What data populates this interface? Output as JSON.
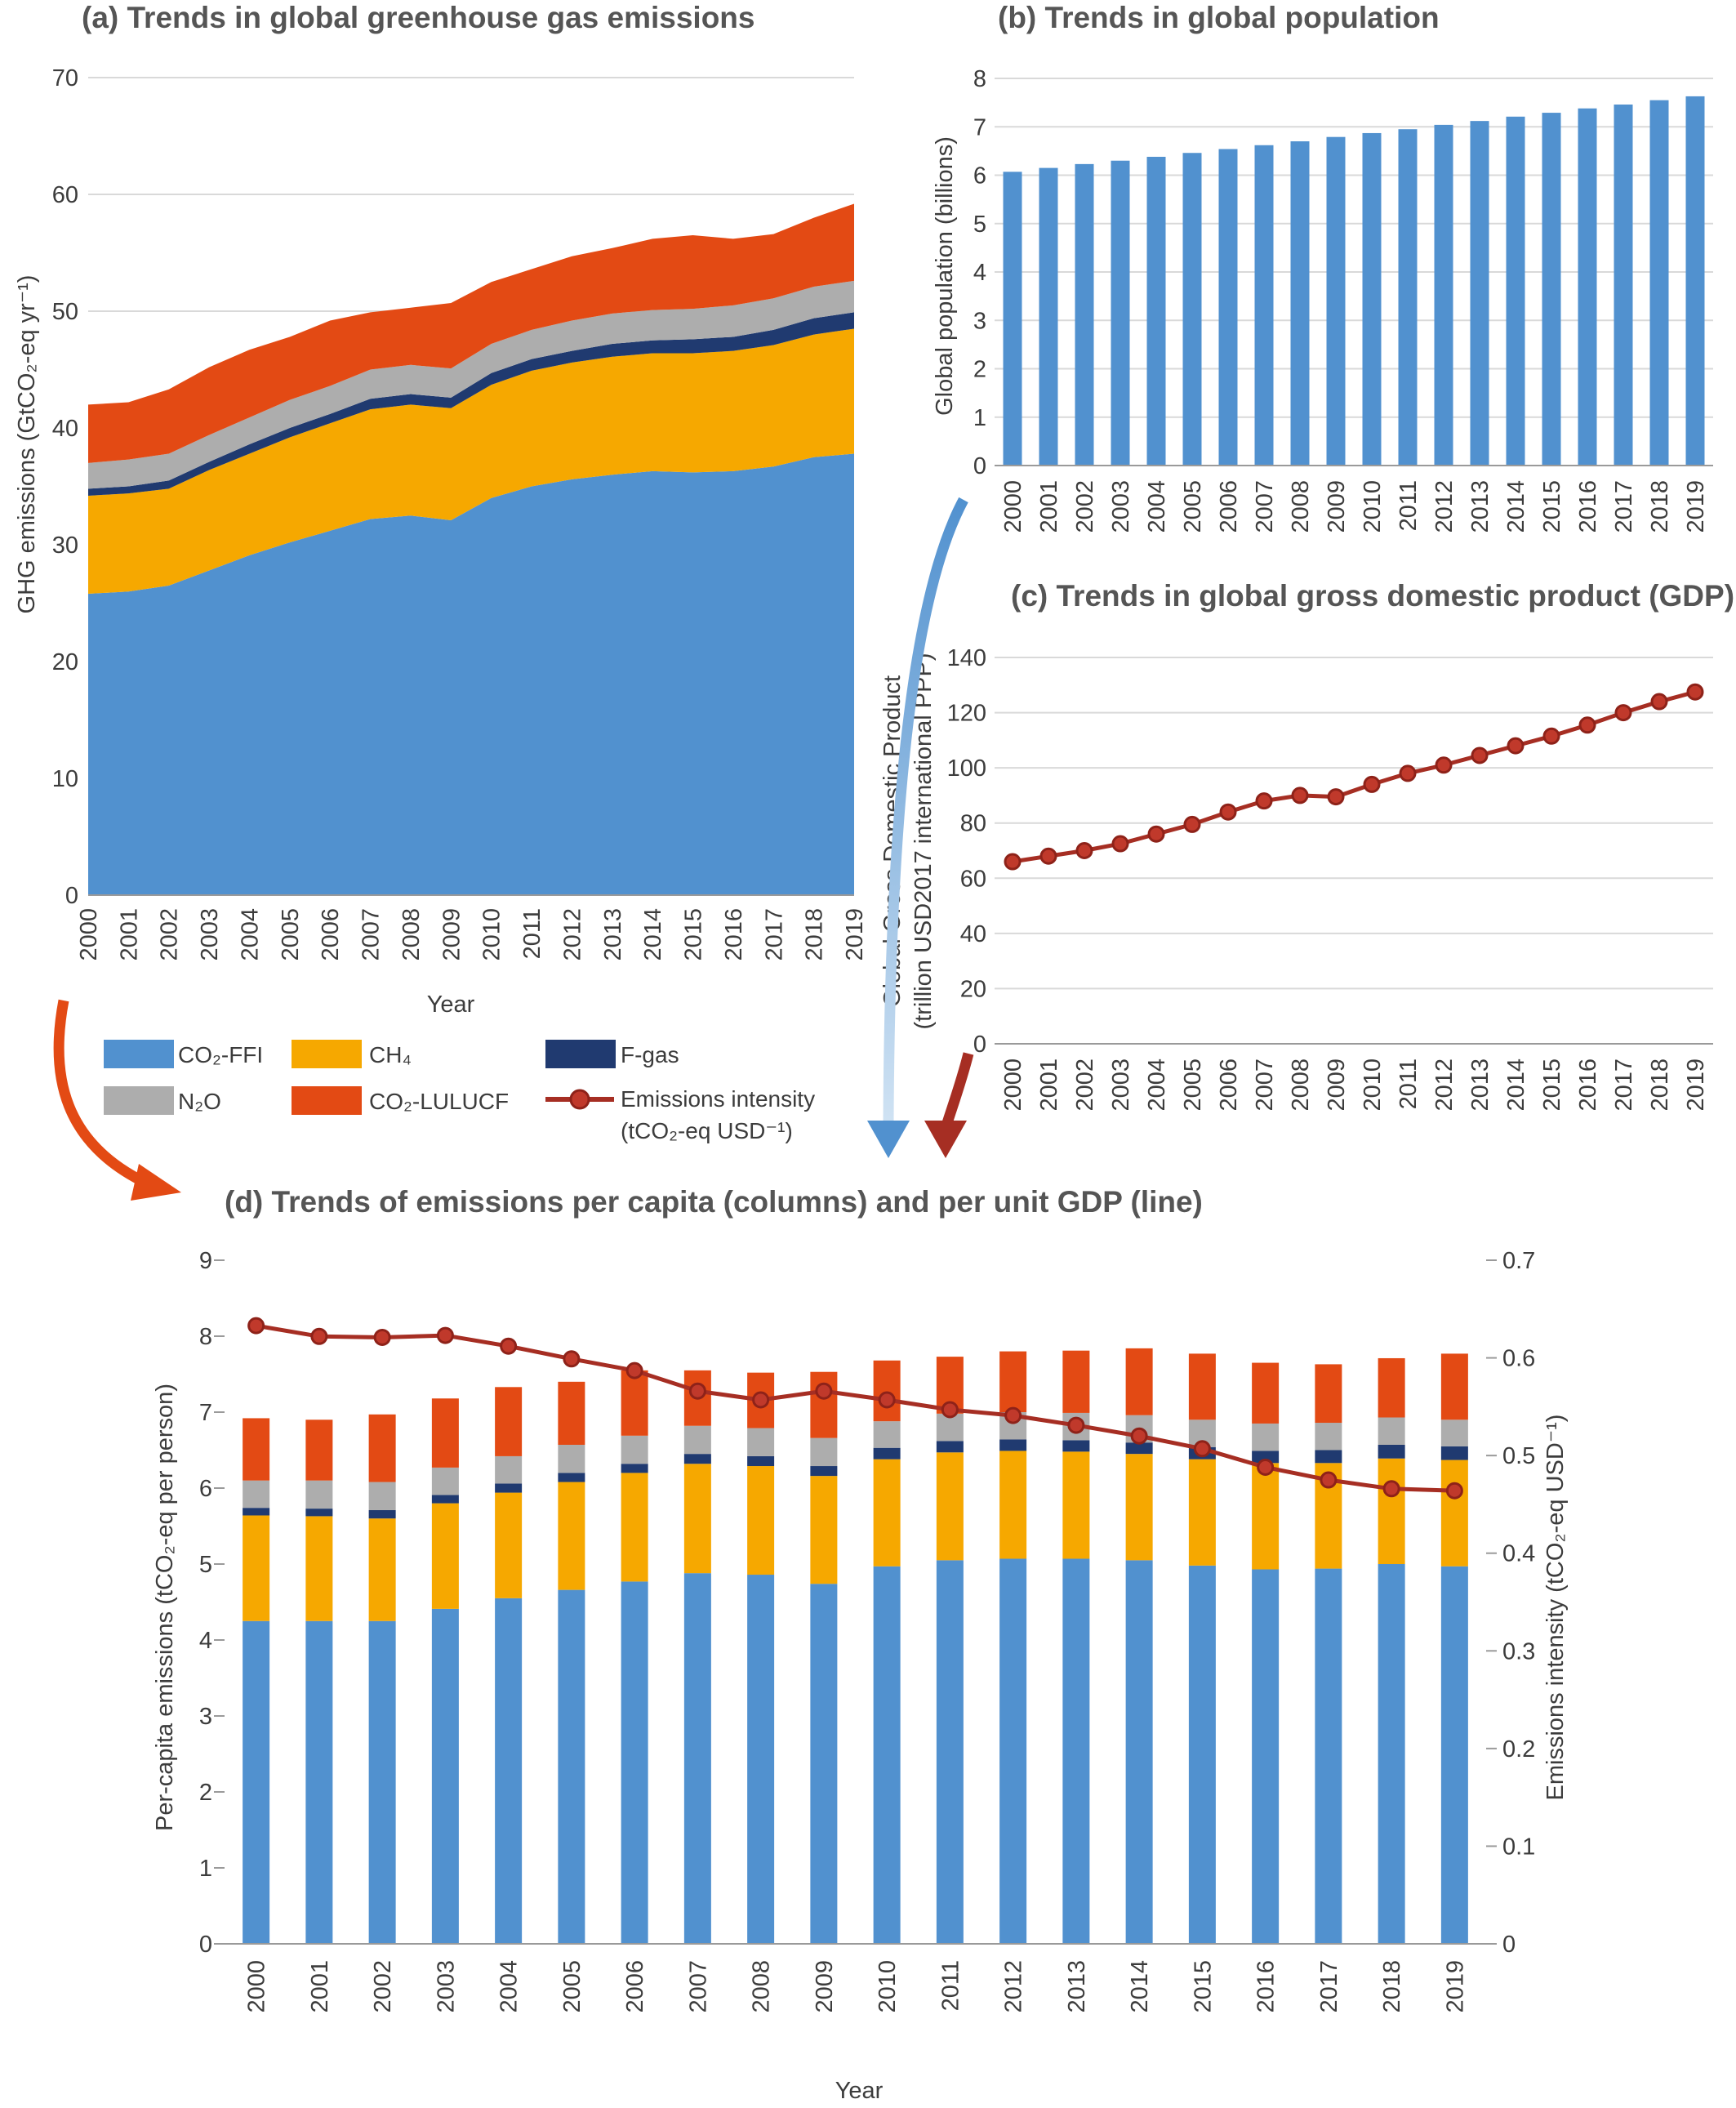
{
  "colors": {
    "co2_ffi": "#5191cf",
    "ch4": "#f6a800",
    "fgas": "#203a70",
    "n2o": "#adadad",
    "lulucf": "#e34a14",
    "intensity": "#a62e23",
    "pop": "#5191cf",
    "grid": "#d9d9d9",
    "axis": "#9a9a9a",
    "title": "#555555"
  },
  "legend": [
    {
      "key": "co2_ffi",
      "label": "CO₂-FFI",
      "kind": "box"
    },
    {
      "key": "ch4",
      "label": "CH₄",
      "kind": "box"
    },
    {
      "key": "fgas",
      "label": "F-gas",
      "kind": "box"
    },
    {
      "key": "n2o",
      "label": "N₂O",
      "kind": "box"
    },
    {
      "key": "lulucf",
      "label": "CO₂-LULUCF",
      "kind": "box"
    },
    {
      "key": "intensity",
      "label": "Emissions intensity",
      "label2": "(tCO₂-eq USD⁻¹)",
      "kind": "line"
    }
  ],
  "chart_data": [
    {
      "id": "a",
      "type": "area",
      "title": "(a) Trends in global greenhouse gas emissions",
      "xlabel": "Year",
      "ylabel": "GHG emissions (GtCO₂-eq yr⁻¹)",
      "ylim": [
        0,
        70
      ],
      "yticks": [
        0,
        10,
        20,
        30,
        40,
        50,
        60,
        70
      ],
      "grid": true,
      "x": [
        "2000",
        "2001",
        "2002",
        "2003",
        "2004",
        "2005",
        "2006",
        "2007",
        "2008",
        "2009",
        "2010",
        "2011",
        "2012",
        "2013",
        "2014",
        "2015",
        "2016",
        "2017",
        "2018",
        "2019"
      ],
      "series": [
        {
          "name": "CO₂-FFI",
          "key": "co2_ffi",
          "values": [
            25.8,
            26.0,
            26.5,
            27.8,
            29.1,
            30.2,
            31.2,
            32.2,
            32.5,
            32.1,
            34.0,
            35.0,
            35.6,
            36.0,
            36.3,
            36.2,
            36.3,
            36.7,
            37.5,
            37.8
          ]
        },
        {
          "name": "CH₄",
          "key": "ch4",
          "values": [
            8.4,
            8.4,
            8.3,
            8.6,
            8.7,
            9.0,
            9.2,
            9.4,
            9.5,
            9.6,
            9.7,
            9.9,
            10.0,
            10.1,
            10.1,
            10.2,
            10.3,
            10.4,
            10.5,
            10.7
          ]
        },
        {
          "name": "F-gas",
          "key": "fgas",
          "values": [
            0.6,
            0.6,
            0.7,
            0.7,
            0.8,
            0.8,
            0.8,
            0.9,
            0.9,
            0.9,
            1.0,
            1.0,
            1.0,
            1.1,
            1.1,
            1.2,
            1.2,
            1.3,
            1.4,
            1.4
          ]
        },
        {
          "name": "N₂O",
          "key": "n2o",
          "values": [
            2.2,
            2.3,
            2.3,
            2.3,
            2.3,
            2.4,
            2.4,
            2.5,
            2.5,
            2.5,
            2.5,
            2.5,
            2.6,
            2.6,
            2.6,
            2.6,
            2.7,
            2.7,
            2.7,
            2.7
          ]
        },
        {
          "name": "CO₂-LULUCF",
          "key": "lulucf",
          "values": [
            5.0,
            4.9,
            5.5,
            5.8,
            5.8,
            5.4,
            5.6,
            4.9,
            4.9,
            5.6,
            5.3,
            5.2,
            5.5,
            5.6,
            6.1,
            6.3,
            5.7,
            5.5,
            5.9,
            6.6
          ]
        }
      ]
    },
    {
      "id": "b",
      "type": "bar",
      "title": "(b) Trends in global population",
      "ylabel": "Global population (billions)",
      "ylim": [
        0,
        8
      ],
      "yticks": [
        0,
        1,
        2,
        3,
        4,
        5,
        6,
        7,
        8
      ],
      "grid": true,
      "categories": [
        "2000",
        "2001",
        "2002",
        "2003",
        "2004",
        "2005",
        "2006",
        "2007",
        "2008",
        "2009",
        "2010",
        "2011",
        "2012",
        "2013",
        "2014",
        "2015",
        "2016",
        "2017",
        "2018",
        "2019"
      ],
      "values": [
        6.07,
        6.15,
        6.23,
        6.3,
        6.38,
        6.46,
        6.54,
        6.62,
        6.7,
        6.79,
        6.87,
        6.95,
        7.04,
        7.12,
        7.21,
        7.29,
        7.38,
        7.46,
        7.55,
        7.63
      ]
    },
    {
      "id": "c",
      "type": "line",
      "title": "(c) Trends in global gross domestic product (GDP)",
      "ylabel": "Global Gross Domestic Product",
      "ylabel2": "(trillion USD2017 international PPP)",
      "ylim": [
        0,
        140
      ],
      "yticks": [
        0,
        20,
        40,
        60,
        80,
        100,
        120,
        140
      ],
      "grid": true,
      "x": [
        "2000",
        "2001",
        "2002",
        "2003",
        "2004",
        "2005",
        "2006",
        "2007",
        "2008",
        "2009",
        "2010",
        "2011",
        "2012",
        "2013",
        "2014",
        "2015",
        "2016",
        "2017",
        "2018",
        "2019"
      ],
      "values": [
        66.0,
        68.0,
        70.0,
        72.5,
        76.0,
        79.5,
        84.0,
        88.0,
        90.0,
        89.5,
        94.0,
        98.0,
        101.0,
        104.5,
        108.0,
        111.5,
        115.5,
        120.0,
        124.0,
        127.5
      ]
    },
    {
      "id": "d",
      "type": "bar",
      "stacked": true,
      "title": "(d) Trends of emissions per capita (columns) and per unit GDP (line)",
      "xlabel": "Year",
      "ylabel": "Per-capita emissions (tCO₂-eq per person)",
      "ylabel_right": "Emissions intensity (tCO₂-eq USD⁻¹)",
      "ylim": [
        0,
        9
      ],
      "yticks": [
        0,
        1,
        2,
        3,
        4,
        5,
        6,
        7,
        8,
        9
      ],
      "ylim_right": [
        0,
        0.7
      ],
      "yticks_right": [
        "0",
        "0.1",
        "0.2",
        "0.3",
        "0.4",
        "0.5",
        "0.6",
        "0.7"
      ],
      "grid": false,
      "categories": [
        "2000",
        "2001",
        "2002",
        "2003",
        "2004",
        "2005",
        "2006",
        "2007",
        "2008",
        "2009",
        "2010",
        "2011",
        "2012",
        "2013",
        "2014",
        "2015",
        "2016",
        "2017",
        "2018",
        "2019"
      ],
      "series": [
        {
          "name": "CO₂-FFI",
          "key": "co2_ffi",
          "values": [
            4.25,
            4.25,
            4.25,
            4.41,
            4.55,
            4.66,
            4.77,
            4.88,
            4.86,
            4.74,
            4.97,
            5.05,
            5.07,
            5.07,
            5.05,
            4.98,
            4.93,
            4.94,
            5.0,
            4.97
          ]
        },
        {
          "name": "CH₄",
          "key": "ch4",
          "values": [
            1.39,
            1.38,
            1.35,
            1.39,
            1.39,
            1.42,
            1.43,
            1.44,
            1.43,
            1.42,
            1.41,
            1.42,
            1.42,
            1.41,
            1.4,
            1.4,
            1.4,
            1.39,
            1.39,
            1.4
          ]
        },
        {
          "name": "F-gas",
          "key": "fgas",
          "values": [
            0.1,
            0.1,
            0.11,
            0.11,
            0.12,
            0.12,
            0.12,
            0.13,
            0.13,
            0.13,
            0.15,
            0.15,
            0.15,
            0.15,
            0.15,
            0.16,
            0.16,
            0.17,
            0.18,
            0.18
          ]
        },
        {
          "name": "N₂O",
          "key": "n2o",
          "values": [
            0.36,
            0.37,
            0.37,
            0.36,
            0.36,
            0.37,
            0.37,
            0.37,
            0.37,
            0.37,
            0.35,
            0.36,
            0.36,
            0.36,
            0.36,
            0.36,
            0.36,
            0.36,
            0.36,
            0.35
          ]
        },
        {
          "name": "CO₂-LULUCF",
          "key": "lulucf",
          "values": [
            0.82,
            0.8,
            0.89,
            0.91,
            0.91,
            0.83,
            0.86,
            0.73,
            0.73,
            0.87,
            0.8,
            0.75,
            0.8,
            0.82,
            0.88,
            0.87,
            0.8,
            0.77,
            0.78,
            0.87
          ]
        }
      ],
      "line_series": {
        "name": "Emissions intensity",
        "key": "intensity",
        "axis": "right",
        "values": [
          0.633,
          0.622,
          0.621,
          0.623,
          0.612,
          0.599,
          0.587,
          0.566,
          0.557,
          0.566,
          0.557,
          0.547,
          0.541,
          0.531,
          0.52,
          0.507,
          0.488,
          0.475,
          0.466,
          0.464
        ]
      }
    }
  ]
}
